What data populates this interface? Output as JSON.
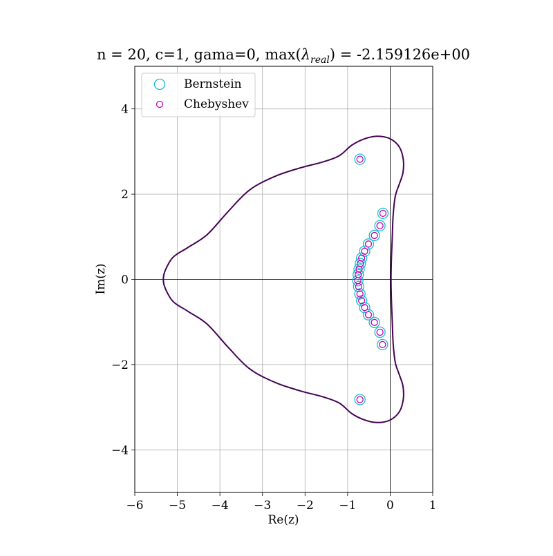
{
  "chart_data": {
    "type": "scatter",
    "title": "n = 20, c=1, gama=0, max(λreal) = -2.159126e+00",
    "title_parts": {
      "prefix": "n = 20, c=1, gama=0, max(",
      "lambda": "λ",
      "subscript": "real",
      "suffix": ") = -2.159126e+00"
    },
    "xlabel": "Re(z)",
    "ylabel": "Im(z)",
    "xlim": [
      -6,
      1
    ],
    "ylim": [
      -5,
      5
    ],
    "xticks": [
      -6,
      -5,
      -4,
      -3,
      -2,
      -1,
      0,
      1
    ],
    "xtick_labels": [
      "−6",
      "−5",
      "−4",
      "−3",
      "−2",
      "−1",
      "0",
      "1"
    ],
    "yticks": [
      -4,
      -2,
      0,
      2,
      4
    ],
    "ytick_labels": [
      "−4",
      "−2",
      "0",
      "2",
      "4"
    ],
    "grid": true,
    "legend_position": "top-left",
    "series": [
      {
        "name": "Bernstein",
        "marker": "open-circle-large",
        "color": "#17becf",
        "points": [
          [
            -0.71,
            2.82
          ],
          [
            -0.17,
            1.55
          ],
          [
            -0.24,
            1.26
          ],
          [
            -0.37,
            1.03
          ],
          [
            -0.51,
            0.83
          ],
          [
            -0.6,
            0.66
          ],
          [
            -0.67,
            0.5
          ],
          [
            -0.7,
            0.37
          ],
          [
            -0.73,
            0.24
          ],
          [
            -0.75,
            0.11
          ],
          [
            -0.76,
            -0.03
          ],
          [
            -0.74,
            -0.17
          ],
          [
            -0.71,
            -0.34
          ],
          [
            -0.67,
            -0.5
          ],
          [
            -0.6,
            -0.66
          ],
          [
            -0.51,
            -0.83
          ],
          [
            -0.37,
            -1.01
          ],
          [
            -0.24,
            -1.24
          ],
          [
            -0.18,
            -1.53
          ],
          [
            -0.71,
            -2.82
          ]
        ]
      },
      {
        "name": "Chebyshev",
        "marker": "open-circle-small",
        "color": "#bf00bf",
        "points": [
          [
            -0.71,
            2.82
          ],
          [
            -0.17,
            1.55
          ],
          [
            -0.24,
            1.26
          ],
          [
            -0.37,
            1.03
          ],
          [
            -0.51,
            0.83
          ],
          [
            -0.6,
            0.66
          ],
          [
            -0.67,
            0.5
          ],
          [
            -0.7,
            0.37
          ],
          [
            -0.73,
            0.24
          ],
          [
            -0.75,
            0.11
          ],
          [
            -0.76,
            -0.03
          ],
          [
            -0.74,
            -0.17
          ],
          [
            -0.71,
            -0.34
          ],
          [
            -0.67,
            -0.5
          ],
          [
            -0.6,
            -0.66
          ],
          [
            -0.51,
            -0.83
          ],
          [
            -0.37,
            -1.01
          ],
          [
            -0.24,
            -1.24
          ],
          [
            -0.18,
            -1.53
          ],
          [
            -0.71,
            -2.82
          ]
        ]
      }
    ],
    "stability_contour": {
      "color": "#440154",
      "points": [
        [
          0.02,
          0
        ],
        [
          0.03,
          0.5
        ],
        [
          0.05,
          1.0
        ],
        [
          0.07,
          1.5
        ],
        [
          0.12,
          1.95
        ],
        [
          0.22,
          2.25
        ],
        [
          0.3,
          2.5
        ],
        [
          0.31,
          2.8
        ],
        [
          0.22,
          3.1
        ],
        [
          0.0,
          3.3
        ],
        [
          -0.3,
          3.36
        ],
        [
          -0.6,
          3.3
        ],
        [
          -0.9,
          3.15
        ],
        [
          -1.2,
          2.9
        ],
        [
          -1.6,
          2.75
        ],
        [
          -2.1,
          2.62
        ],
        [
          -2.7,
          2.42
        ],
        [
          -3.3,
          2.1
        ],
        [
          -3.8,
          1.6
        ],
        [
          -4.3,
          1.05
        ],
        [
          -4.75,
          0.75
        ],
        [
          -5.1,
          0.52
        ],
        [
          -5.28,
          0.22
        ],
        [
          -5.33,
          0.0
        ],
        [
          -5.28,
          -0.22
        ],
        [
          -5.1,
          -0.52
        ],
        [
          -4.75,
          -0.75
        ],
        [
          -4.3,
          -1.05
        ],
        [
          -3.8,
          -1.6
        ],
        [
          -3.3,
          -2.1
        ],
        [
          -2.7,
          -2.42
        ],
        [
          -2.1,
          -2.62
        ],
        [
          -1.6,
          -2.75
        ],
        [
          -1.2,
          -2.9
        ],
        [
          -0.9,
          -3.15
        ],
        [
          -0.6,
          -3.3
        ],
        [
          -0.3,
          -3.36
        ],
        [
          0.0,
          -3.3
        ],
        [
          0.22,
          -3.1
        ],
        [
          0.31,
          -2.8
        ],
        [
          0.3,
          -2.5
        ],
        [
          0.22,
          -2.25
        ],
        [
          0.12,
          -1.95
        ],
        [
          0.07,
          -1.5
        ],
        [
          0.05,
          -1.0
        ],
        [
          0.03,
          -0.5
        ],
        [
          0.02,
          0
        ]
      ]
    }
  }
}
